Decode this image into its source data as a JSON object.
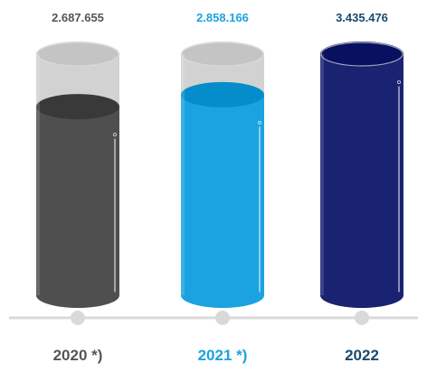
{
  "chart_data": {
    "type": "bar",
    "categories": [
      "2020 *)",
      "2021 *)",
      "2022"
    ],
    "values": [
      2687655,
      2858166,
      3435476
    ],
    "value_labels": [
      "2.687.655",
      "2.858.166",
      "3.435.476"
    ],
    "ylim": [
      0,
      3435476
    ],
    "colors": {
      "bar_2020": "#4f4f4f",
      "bar_2021": "#1aa3e0",
      "bar_2022": "#1a2372",
      "label_2020": "#555555",
      "label_2021": "#1aa3e0",
      "label_2022": "#1a4a6e",
      "empty_glass": "#d2d2d2",
      "baseline": "#d9d9d9"
    }
  }
}
